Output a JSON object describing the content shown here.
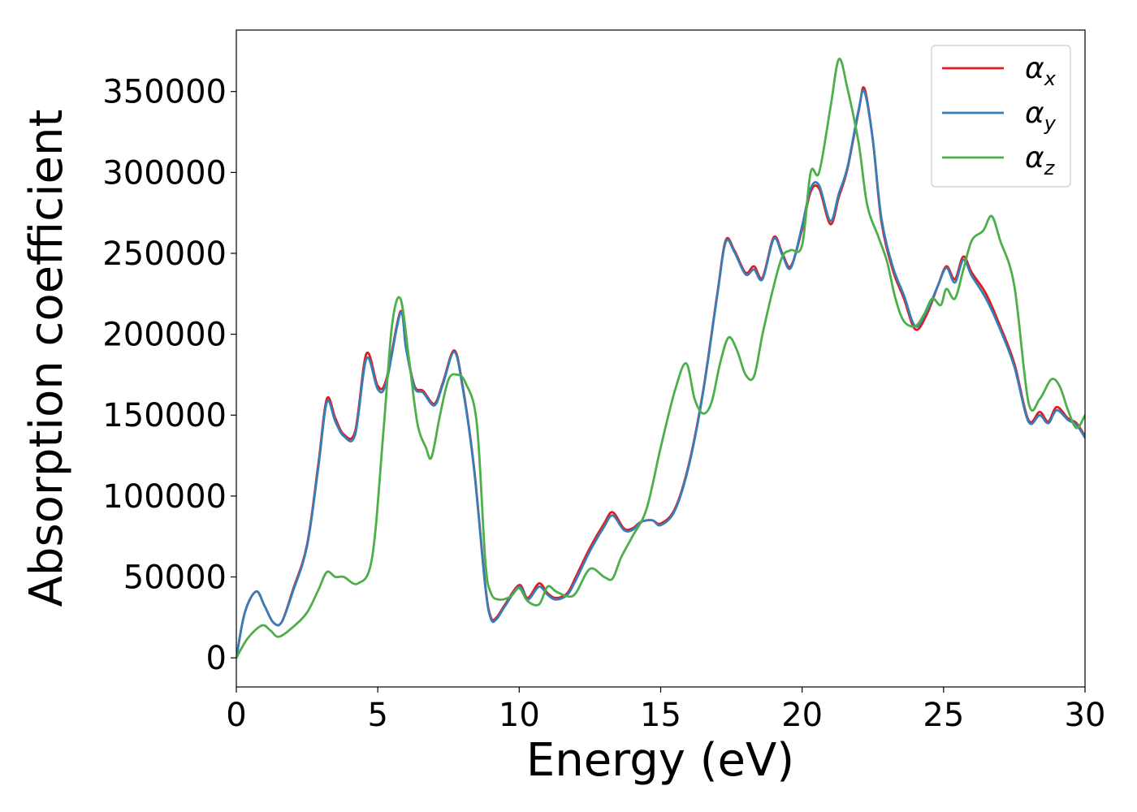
{
  "chart_data": {
    "type": "line",
    "xlabel": "Energy (eV)",
    "ylabel": "Absorption coefficient",
    "xlim": [
      0,
      30
    ],
    "ylim": [
      -18000,
      388000
    ],
    "xticks": [
      0,
      5,
      10,
      15,
      20,
      25,
      30
    ],
    "yticks": [
      0,
      50000,
      100000,
      150000,
      200000,
      250000,
      300000,
      350000
    ],
    "grid": false,
    "legend_position": "top-right",
    "series": [
      {
        "name": "α_x",
        "label_main": "α",
        "label_sub": "x",
        "color": "#e41a1c",
        "x": [
          0,
          0.3,
          0.7,
          1.0,
          1.3,
          1.6,
          2.0,
          2.5,
          2.9,
          3.2,
          3.5,
          3.8,
          4.2,
          4.6,
          5.0,
          5.3,
          5.8,
          6.0,
          6.3,
          6.6,
          7.0,
          7.3,
          7.7,
          8.0,
          8.4,
          8.8,
          9.0,
          9.2,
          9.5,
          10.0,
          10.3,
          10.7,
          11.0,
          11.3,
          11.7,
          12.0,
          12.5,
          13.0,
          13.3,
          13.7,
          14.0,
          14.3,
          14.7,
          15.0,
          15.5,
          16.0,
          16.5,
          17.0,
          17.3,
          17.6,
          18.0,
          18.3,
          18.6,
          19.0,
          19.3,
          19.6,
          20.0,
          20.3,
          20.6,
          21.0,
          21.3,
          21.6,
          22.0,
          22.2,
          22.5,
          22.8,
          23.2,
          23.6,
          24.0,
          24.4,
          24.8,
          25.1,
          25.4,
          25.7,
          26.0,
          26.5,
          27.0,
          27.5,
          28.0,
          28.4,
          28.7,
          29.0,
          29.4,
          29.7,
          30.0
        ],
        "y": [
          0,
          28000,
          41000,
          32000,
          22000,
          22000,
          42000,
          70000,
          120000,
          160000,
          148000,
          138000,
          140000,
          188000,
          168000,
          172000,
          214000,
          192000,
          168000,
          165000,
          157000,
          170000,
          190000,
          168000,
          118000,
          45000,
          25000,
          25000,
          33000,
          45000,
          37000,
          46000,
          40000,
          37000,
          40000,
          50000,
          68000,
          83000,
          90000,
          80000,
          80000,
          84000,
          85000,
          83000,
          92000,
          120000,
          165000,
          225000,
          258000,
          252000,
          238000,
          242000,
          235000,
          260000,
          250000,
          242000,
          265000,
          288000,
          290000,
          268000,
          285000,
          302000,
          338000,
          352000,
          320000,
          270000,
          240000,
          222000,
          203000,
          212000,
          230000,
          242000,
          234000,
          248000,
          238000,
          225000,
          205000,
          182000,
          147000,
          152000,
          146000,
          155000,
          148000,
          145000,
          137000
        ]
      },
      {
        "name": "α_y",
        "label_main": "α",
        "label_sub": "y",
        "color": "#377eb8",
        "x": [
          0,
          0.3,
          0.7,
          1.0,
          1.3,
          1.6,
          2.0,
          2.5,
          2.9,
          3.2,
          3.5,
          3.8,
          4.2,
          4.6,
          5.0,
          5.3,
          5.8,
          6.0,
          6.3,
          6.6,
          7.0,
          7.3,
          7.7,
          8.0,
          8.4,
          8.8,
          9.0,
          9.2,
          9.5,
          10.0,
          10.3,
          10.7,
          11.0,
          11.3,
          11.7,
          12.0,
          12.5,
          13.0,
          13.3,
          13.7,
          14.0,
          14.3,
          14.7,
          15.0,
          15.5,
          16.0,
          16.5,
          17.0,
          17.3,
          17.6,
          18.0,
          18.3,
          18.6,
          19.0,
          19.3,
          19.6,
          20.0,
          20.3,
          20.6,
          21.0,
          21.3,
          21.6,
          22.0,
          22.2,
          22.5,
          22.8,
          23.2,
          23.6,
          24.0,
          24.4,
          24.8,
          25.1,
          25.4,
          25.7,
          26.0,
          26.5,
          27.0,
          27.5,
          28.0,
          28.4,
          28.7,
          29.0,
          29.4,
          29.7,
          30.0
        ],
        "y": [
          0,
          28000,
          41000,
          32000,
          22000,
          22000,
          41000,
          69000,
          118000,
          158000,
          146000,
          137000,
          138000,
          185000,
          166000,
          170000,
          213000,
          191000,
          167000,
          164000,
          156000,
          169000,
          189000,
          167000,
          117000,
          44000,
          24000,
          24000,
          32000,
          44000,
          36000,
          44000,
          39000,
          36000,
          39000,
          48000,
          66000,
          81000,
          88000,
          79000,
          79000,
          84000,
          85000,
          82000,
          91000,
          119000,
          164000,
          224000,
          257000,
          251000,
          237000,
          240000,
          234000,
          259000,
          249000,
          241000,
          267000,
          290000,
          292000,
          270000,
          287000,
          303000,
          339000,
          350000,
          320000,
          272000,
          242000,
          224000,
          205000,
          214000,
          230000,
          241000,
          232000,
          246000,
          236000,
          222000,
          203000,
          180000,
          146000,
          150000,
          145000,
          153000,
          147000,
          144000,
          136000
        ]
      },
      {
        "name": "α_z",
        "label_main": "α",
        "label_sub": "z",
        "color": "#4daf4a",
        "x": [
          0,
          0.4,
          0.9,
          1.2,
          1.5,
          2.0,
          2.5,
          2.9,
          3.2,
          3.5,
          3.8,
          4.3,
          4.8,
          5.2,
          5.5,
          5.8,
          6.1,
          6.4,
          6.7,
          6.9,
          7.2,
          7.5,
          7.8,
          8.1,
          8.5,
          8.8,
          9.0,
          9.3,
          9.7,
          10.0,
          10.3,
          10.7,
          11.0,
          11.3,
          11.7,
          12.0,
          12.5,
          13.0,
          13.3,
          13.6,
          14.0,
          14.5,
          15.0,
          15.5,
          15.9,
          16.2,
          16.5,
          16.8,
          17.1,
          17.4,
          17.7,
          18.0,
          18.3,
          18.6,
          19.0,
          19.3,
          19.6,
          20.0,
          20.3,
          20.6,
          21.0,
          21.3,
          21.6,
          22.0,
          22.3,
          22.7,
          23.0,
          23.3,
          23.6,
          24.0,
          24.3,
          24.6,
          24.9,
          25.1,
          25.4,
          25.7,
          26.0,
          26.4,
          26.7,
          27.0,
          27.5,
          28.0,
          28.4,
          28.8,
          29.1,
          29.4,
          29.7,
          30.0
        ],
        "y": [
          0,
          12000,
          20000,
          17000,
          13000,
          19000,
          28000,
          42000,
          53000,
          50000,
          50000,
          46000,
          62000,
          140000,
          205000,
          222000,
          185000,
          145000,
          130000,
          124000,
          150000,
          172000,
          175000,
          170000,
          145000,
          60000,
          40000,
          36000,
          38000,
          43000,
          35000,
          33000,
          44000,
          41000,
          38000,
          40000,
          55000,
          50000,
          49000,
          62000,
          75000,
          92000,
          130000,
          165000,
          182000,
          160000,
          151000,
          158000,
          182000,
          198000,
          190000,
          175000,
          174000,
          200000,
          230000,
          248000,
          252000,
          255000,
          300000,
          300000,
          340000,
          370000,
          352000,
          318000,
          280000,
          260000,
          245000,
          222000,
          208000,
          205000,
          212000,
          222000,
          218000,
          228000,
          222000,
          240000,
          258000,
          264000,
          273000,
          258000,
          230000,
          158000,
          160000,
          172000,
          168000,
          153000,
          142000,
          150000
        ]
      }
    ]
  }
}
